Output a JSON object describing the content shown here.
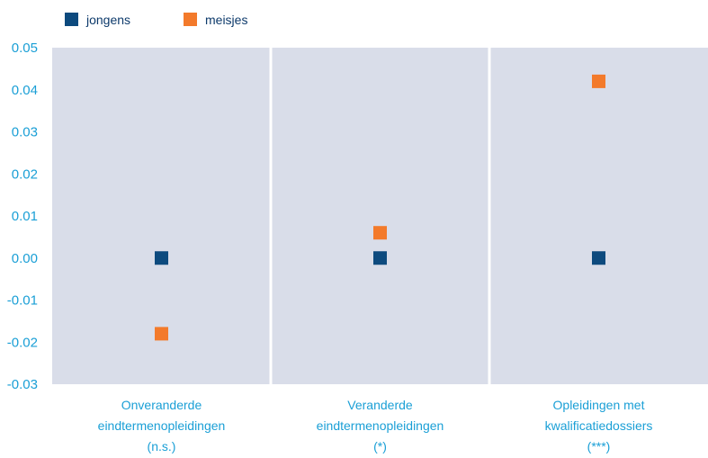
{
  "chart_data": {
    "type": "scatter",
    "title": "",
    "xlabel": "",
    "ylabel": "",
    "ylim": [
      -0.03,
      0.05
    ],
    "yticks": [
      "0.05",
      "0.04",
      "0.03",
      "0.02",
      "0.01",
      "0.00",
      "-0.01",
      "-0.02",
      "-0.03"
    ],
    "ytick_values": [
      0.05,
      0.04,
      0.03,
      0.02,
      0.01,
      0.0,
      -0.01,
      -0.02,
      -0.03
    ],
    "categories": [
      [
        "Onveranderde",
        "eindtermenopleidingen",
        "(n.s.)"
      ],
      [
        "Veranderde",
        "eindtermenopleidingen",
        "(*)"
      ],
      [
        "Opleidingen met",
        "kwalificatiedossiers",
        "(***)"
      ]
    ],
    "series": [
      {
        "name": "jongens",
        "color": "#0d4a7e",
        "values": [
          0.0,
          0.0,
          0.0
        ]
      },
      {
        "name": "meisjes",
        "color": "#f37a2b",
        "values": [
          -0.018,
          0.006,
          0.042
        ]
      }
    ],
    "grid": false,
    "legend": "top-left",
    "plot_background": "#d9dde9",
    "tick_color": "#1a9fd6"
  }
}
